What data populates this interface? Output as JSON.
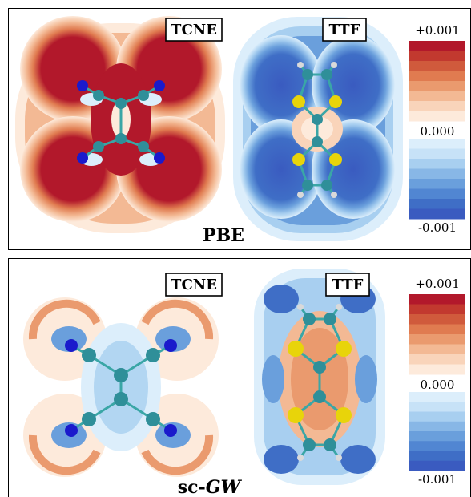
{
  "colorbar": {
    "max_label": "+0.001",
    "mid_label": "0.000",
    "min_label": "-0.001",
    "positive_colors": [
      "#b2182b",
      "#c2392f",
      "#d05a3c",
      "#e07b50",
      "#ea9a6e",
      "#f3b994",
      "#f9d4ba",
      "#fdeadb"
    ],
    "negative_colors": [
      "#dceefb",
      "#c7e2f7",
      "#a8cff0",
      "#88b7e6",
      "#6a9fdc",
      "#5186d2",
      "#3f6ec6",
      "#3a5bc0"
    ]
  },
  "panels": [
    {
      "method_label": "PBE",
      "method_italic_part": "",
      "left_molecule": "TCNE",
      "right_molecule": "TTF"
    },
    {
      "method_label": "sc-",
      "method_italic_part": "GW",
      "left_molecule": "TCNE",
      "right_molecule": "TTF"
    }
  ],
  "atom_colors": {
    "carbon": "#2f8f99",
    "nitrogen": "#1a1acc",
    "sulfur": "#e8d40a",
    "hydrogen": "#d9d9d9",
    "bond": "#3aa6a6"
  }
}
